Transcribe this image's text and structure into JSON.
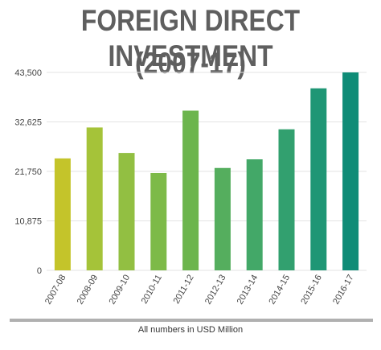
{
  "header": {
    "title_line1": "FOREIGN DIRECT INVESTMENT",
    "title_line2": "(2007-17)"
  },
  "footer": {
    "caption": "All numbers in USD Million"
  },
  "chart_data": {
    "type": "bar",
    "title": "FOREIGN DIRECT INVESTMENT (2007-17)",
    "xlabel": "",
    "ylabel": "",
    "categories": [
      "2007-08",
      "2008-09",
      "2009-10",
      "2010-11",
      "2011-12",
      "2012-13",
      "2013-14",
      "2014-15",
      "2015-16",
      "2016-17"
    ],
    "values": [
      24600,
      31400,
      25800,
      21400,
      35100,
      22500,
      24400,
      31000,
      40000,
      43500
    ],
    "ylim": [
      0,
      43500
    ],
    "yticks": [
      0,
      10875,
      21750,
      32625,
      43500
    ],
    "ytick_labels": [
      "0",
      "10,875",
      "21,750",
      "32,625",
      "43,500"
    ],
    "grid": true,
    "legend": "none",
    "bar_colors": [
      "#c4c42a",
      "#a5c339",
      "#92bf42",
      "#7dba48",
      "#6cb54d",
      "#55ae5e",
      "#43a868",
      "#32a06f",
      "#1f9675",
      "#0f8c77"
    ]
  }
}
